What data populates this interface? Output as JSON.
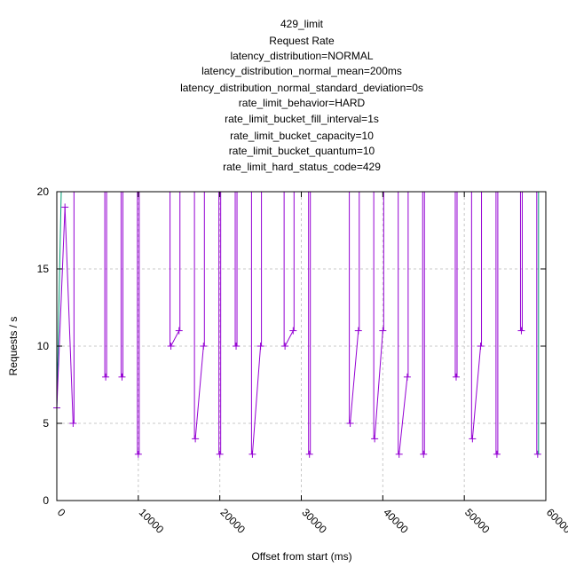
{
  "chart_data": {
    "type": "line",
    "title_lines": [
      "429_limit",
      "Request Rate",
      "latency_distribution=NORMAL",
      "latency_distribution_normal_mean=200ms",
      "latency_distribution_normal_standard_deviation=0s",
      "rate_limit_behavior=HARD",
      "rate_limit_bucket_fill_interval=1s",
      "rate_limit_bucket_capacity=10",
      "rate_limit_bucket_quantum=10",
      "rate_limit_hard_status_code=429"
    ],
    "xlabel": "Offset from start (ms)",
    "ylabel": "Requests / s",
    "xlim": [
      0,
      60000
    ],
    "ylim": [
      0,
      20
    ],
    "xticks": [
      0,
      10000,
      20000,
      30000,
      40000,
      50000,
      60000
    ],
    "yticks": [
      0,
      5,
      10,
      15,
      20
    ],
    "grid": true,
    "colors": {
      "clipped_series": "#009e73",
      "main_series": "#9400d3"
    },
    "series": [
      {
        "values": [
          [
            0,
            6
          ],
          [
            1000,
            19
          ],
          [
            2000,
            5
          ],
          [
            6000,
            8
          ],
          [
            8000,
            8
          ],
          [
            10000,
            3
          ],
          [
            14000,
            10
          ],
          [
            15000,
            11
          ],
          [
            17000,
            4
          ],
          [
            18000,
            10
          ],
          [
            20000,
            3
          ],
          [
            22000,
            10
          ],
          [
            24000,
            3
          ],
          [
            25000,
            10
          ],
          [
            28000,
            10
          ],
          [
            29000,
            11
          ],
          [
            31000,
            3
          ],
          [
            36000,
            5
          ],
          [
            37000,
            11
          ],
          [
            39000,
            4
          ],
          [
            40000,
            11
          ],
          [
            42000,
            3
          ],
          [
            43000,
            8
          ],
          [
            45000,
            3
          ],
          [
            49000,
            8
          ],
          [
            51000,
            4
          ],
          [
            52000,
            10
          ],
          [
            54000,
            3
          ],
          [
            57000,
            11
          ],
          [
            59000,
            3
          ]
        ]
      }
    ]
  }
}
